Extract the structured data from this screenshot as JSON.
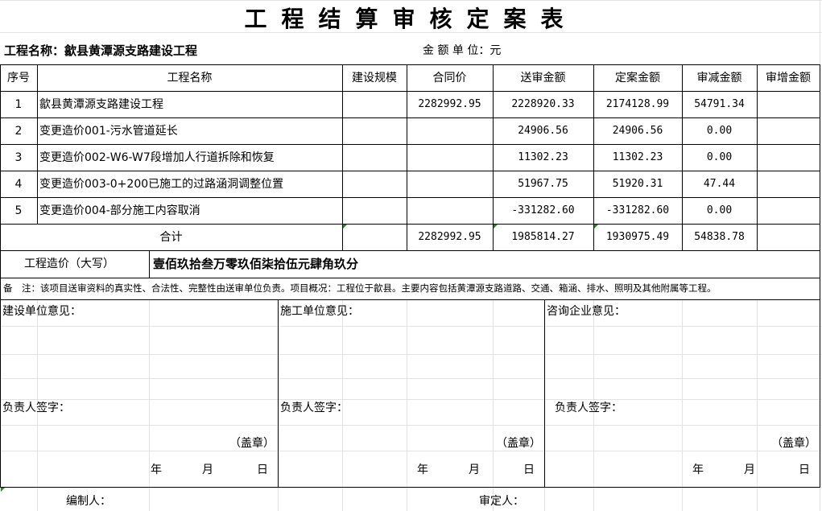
{
  "title": "工程结算审核定案表",
  "project_label": "工程名称：歙县黄潭源支路建设工程",
  "unit_label": "金 额 单 位：元",
  "headers": [
    "序号",
    "工程名称",
    "建设规模",
    "合同价",
    "送审金额",
    "定案金额",
    "审减金额",
    "审增金额"
  ],
  "rows": [
    {
      "no": "1",
      "name": "歙县黄潭源支路建设工程",
      "scale": "",
      "contract": "2282992.95",
      "submitted": "2228920.33",
      "approved": "2174128.99",
      "reduced": "54791.34",
      "increased": ""
    },
    {
      "no": "2",
      "name": "变更造价001-污水管道延长",
      "scale": "",
      "contract": "",
      "submitted": "24906.56",
      "approved": "24906.56",
      "reduced": "0.00",
      "increased": ""
    },
    {
      "no": "3",
      "name": "变更造价002-W6-W7段增加人行道拆除和恢复",
      "scale": "",
      "contract": "",
      "submitted": "11302.23",
      "approved": "11302.23",
      "reduced": "0.00",
      "increased": ""
    },
    {
      "no": "4",
      "name": "变更造价003-0+200已施工的过路涵洞调整位置",
      "scale": "",
      "contract": "",
      "submitted": "51967.75",
      "approved": "51920.31",
      "reduced": "47.44",
      "increased": ""
    },
    {
      "no": "5",
      "name": "变更造价004-部分施工内容取消",
      "scale": "",
      "contract": "",
      "submitted": "-331282.60",
      "approved": "-331282.60",
      "reduced": "0.00",
      "increased": ""
    }
  ],
  "total": {
    "label": "合计",
    "contract": "2282992.95",
    "submitted": "1985814.27",
    "approved": "1930975.49",
    "reduced": "54838.78",
    "increased": ""
  },
  "amount_words": {
    "label": "工程造价（大写）",
    "value": "壹佰玖拾叁万零玖佰柒拾伍元肆角玖分"
  },
  "note": "备　注：该项目送审资料的真实性、合法性、完整性由送审单位负责。项目概况：工程位于歙县。主要内容包括黄潭源支路道路、交通、箱涵、排水、照明及其他附属等工程。",
  "opinions": [
    {
      "title": "建设单位意见：",
      "sign": "负责人签字：",
      "seal": "（盖章）",
      "year": "年",
      "month": "月",
      "day": "日"
    },
    {
      "title": "施工单位意见：",
      "sign": "负责人签字：",
      "seal": "（盖章）",
      "year": "年",
      "month": "月",
      "day": "日"
    },
    {
      "title": "咨询企业意见：",
      "sign": "负责人签字：",
      "seal": "（盖章）",
      "year": "年",
      "month": "月",
      "day": "日"
    }
  ],
  "footer": {
    "compiler": "编制人：",
    "approver": "审定人："
  }
}
